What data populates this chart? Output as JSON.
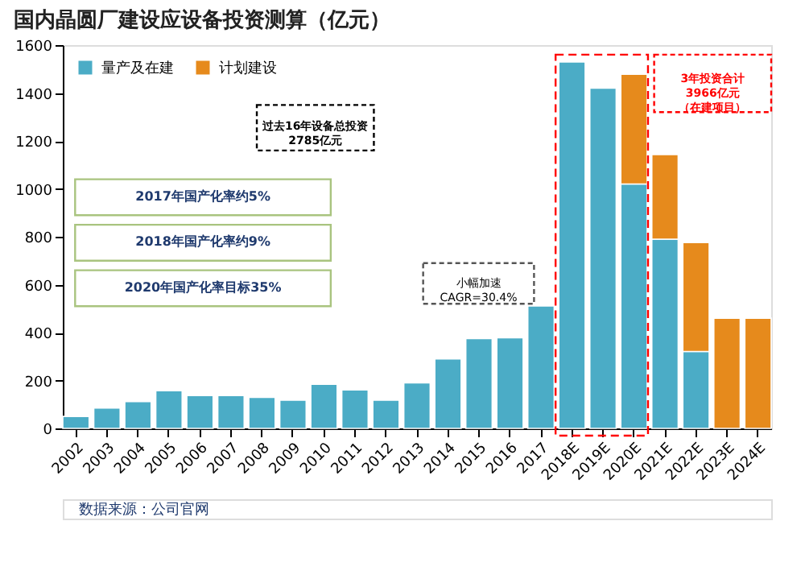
{
  "chart_data": {
    "type": "bar",
    "stacked": true,
    "title": "国内晶圆厂建设应设备投资测算（亿元）",
    "categories": [
      "2002",
      "2003",
      "2004",
      "2005",
      "2006",
      "2007",
      "2008",
      "2009",
      "2010",
      "2011",
      "2012",
      "2013",
      "2014",
      "2015",
      "2016",
      "2017",
      "2018E",
      "2019E",
      "2020E",
      "2021E",
      "2022E",
      "2023E",
      "2024E"
    ],
    "series": [
      {
        "name": "量产及在建",
        "color": "#4bacc6",
        "values": [
          50,
          85,
          112,
          157,
          137,
          137,
          130,
          118,
          184,
          161,
          118,
          190,
          290,
          375,
          378,
          511,
          1530,
          1420,
          1020,
          790,
          321,
          null,
          null
        ]
      },
      {
        "name": "计划建设",
        "color": "#e68a1c",
        "values": [
          null,
          null,
          null,
          null,
          null,
          null,
          null,
          null,
          null,
          null,
          null,
          null,
          null,
          null,
          null,
          null,
          null,
          null,
          458,
          353,
          455,
          460,
          460
        ]
      }
    ],
    "ylim": [
      0,
      1600
    ],
    "yticks": [
      0,
      200,
      400,
      600,
      800,
      1000,
      1200,
      1400,
      1600
    ],
    "grid": false,
    "legend": "top left",
    "annotations": [
      "过去16年设备总投资2785亿元",
      "3年投资合计3966亿元（在建项目）",
      "2017年国产化率约5%",
      "2018年国产化率约9%",
      "2020年国产化率目标35%",
      "小幅加速CAGR=30.4%",
      "数据来源：公司官网"
    ]
  }
}
